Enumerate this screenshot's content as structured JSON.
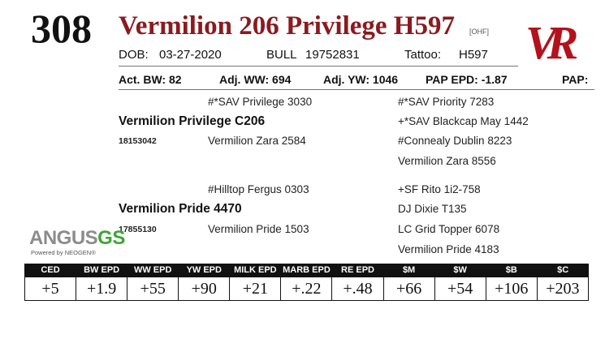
{
  "lot_number": "308",
  "animal_name": "Vermilion 206 Privilege H597",
  "ohf_tag": "[OHF]",
  "logo_monogram": "VR",
  "info_row": {
    "dob_label": "DOB:",
    "dob_value": "03-27-2020",
    "bull_label": "BULL",
    "registration": "19752831",
    "tattoo_label": "Tattoo:",
    "tattoo_value": "H597"
  },
  "performance_row": {
    "act_bw": "Act. BW: 82",
    "adj_ww": "Adj. WW: 694",
    "adj_yw": "Adj. YW: 1046",
    "pap_epd": "PAP EPD: -1.87",
    "pap": "PAP:"
  },
  "pedigree": {
    "sire": {
      "name": "Vermilion Privilege C206",
      "reg": "18153042",
      "sire": "#*SAV Privilege 3030",
      "dam": "Vermilion Zara 2584",
      "sire_sire": "#*SAV Priority 7283",
      "sire_dam": "+*SAV Blackcap May 1442",
      "dam_sire": "#Connealy Dublin 8223",
      "dam_dam": "Vermilion Zara 8556"
    },
    "dam": {
      "name": "Vermilion Pride 4470",
      "reg": "17855130",
      "sire": "#Hilltop Fergus 0303",
      "dam": "Vermilion Pride 1503",
      "sire_sire": "+SF Rito 1i2-758",
      "sire_dam": "DJ Dixie T135",
      "dam_sire": "LC Grid Topper 6078",
      "dam_dam": "Vermilion Pride 4183"
    }
  },
  "brand": {
    "angus": "ANGUS",
    "gs": "GS",
    "powered": "Powered by NEOGEN®"
  },
  "epds": [
    {
      "label": "CED",
      "value": "+5"
    },
    {
      "label": "BW EPD",
      "value": "+1.9"
    },
    {
      "label": "WW EPD",
      "value": "+55"
    },
    {
      "label": "YW EPD",
      "value": "+90"
    },
    {
      "label": "MILK EPD",
      "value": "+21"
    },
    {
      "label": "MARB EPD",
      "value": "+.22"
    },
    {
      "label": "RE EPD",
      "value": "+.48"
    },
    {
      "label": "$M",
      "value": "+66"
    },
    {
      "label": "$W",
      "value": "+54"
    },
    {
      "label": "$B",
      "value": "+106"
    },
    {
      "label": "$C",
      "value": "+203"
    }
  ],
  "colors": {
    "name_red": "#8b1a1f",
    "logo_red": "#b3121c",
    "angus_gray": "#8c8c8c",
    "gs_green": "#3fa535"
  }
}
